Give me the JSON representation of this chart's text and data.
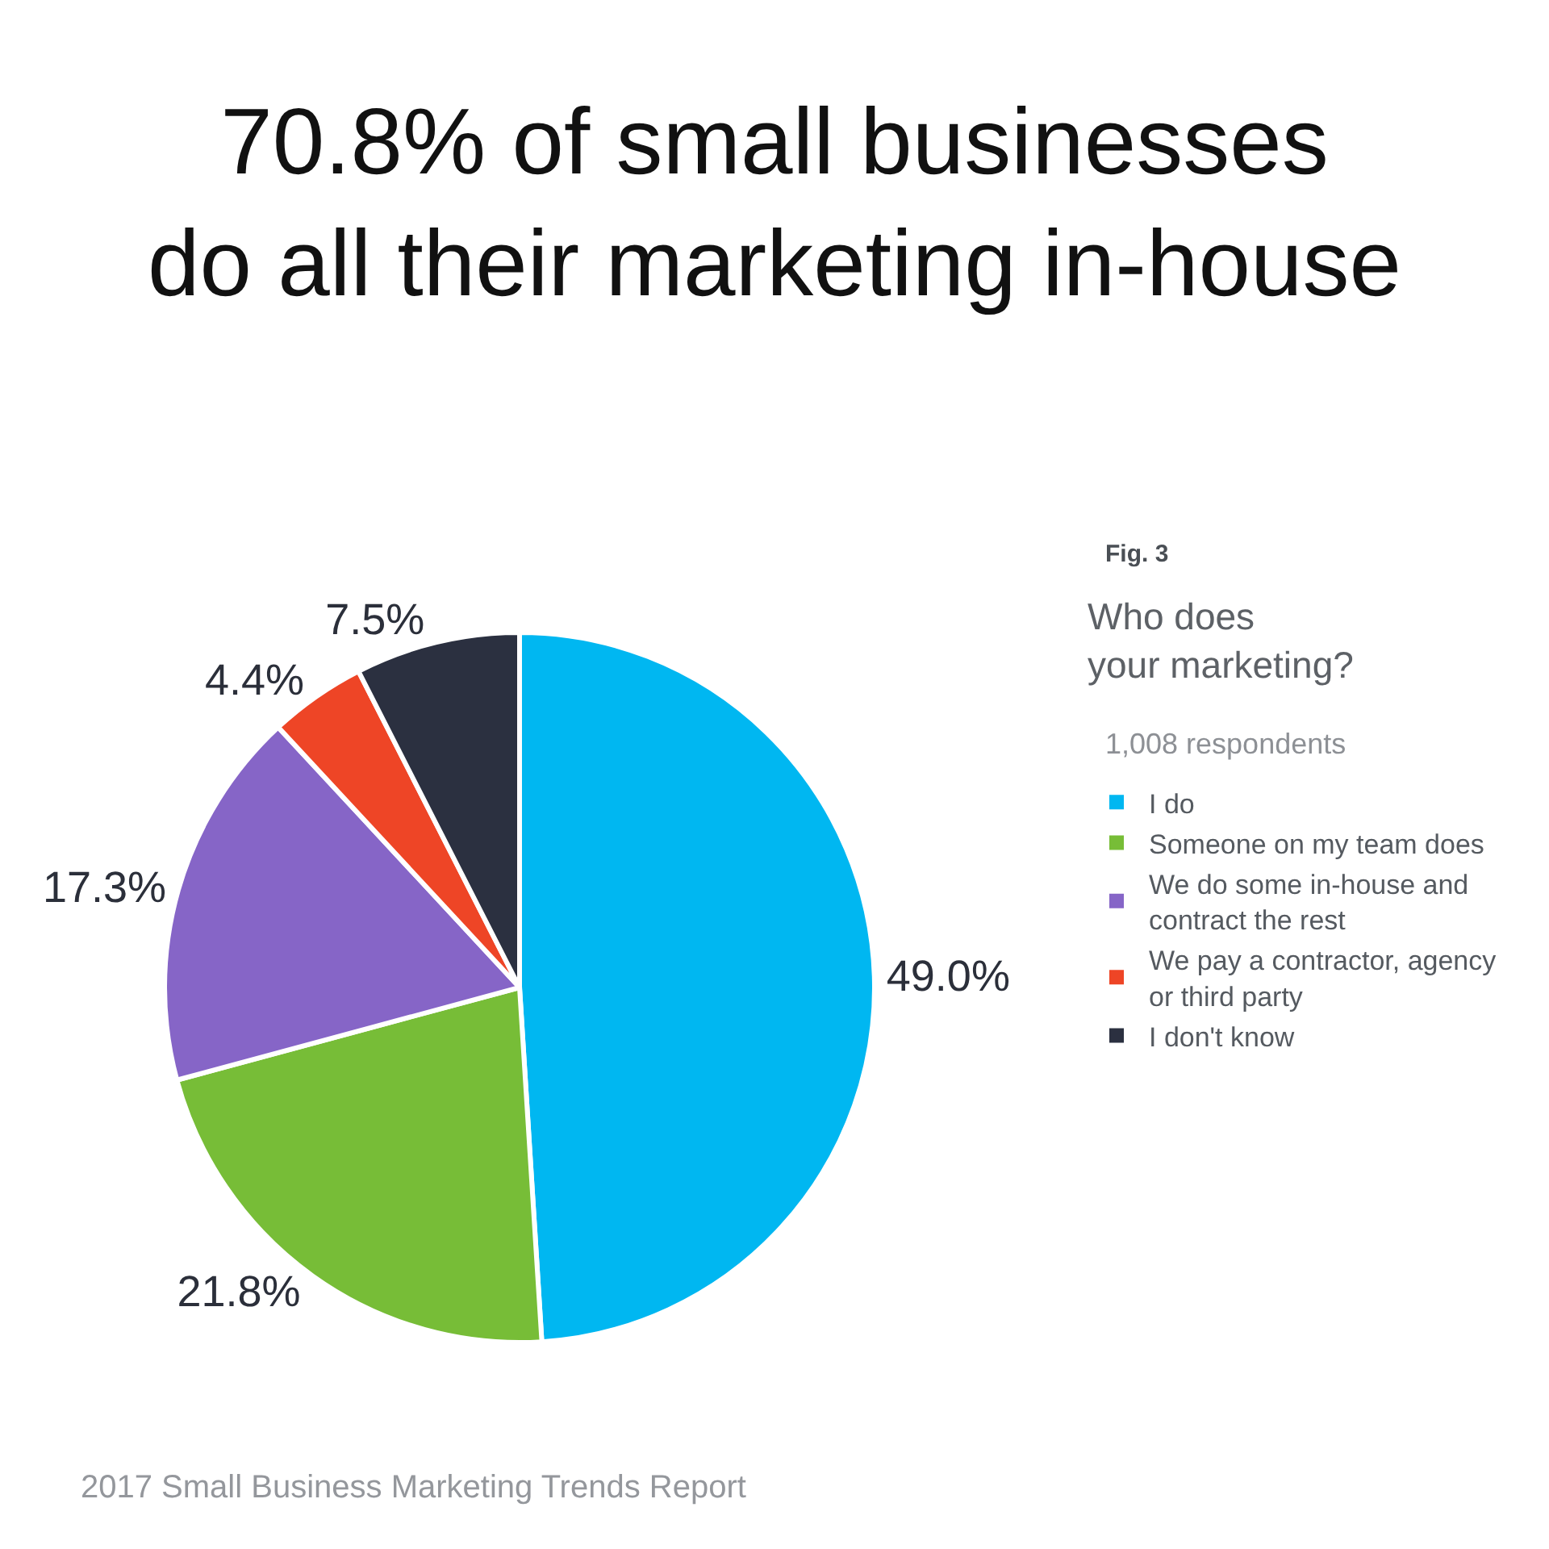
{
  "chart_data": {
    "type": "pie",
    "title": "70.8% of small businesses\ndo all their marketing in-house",
    "legend_title": "Who does\nyour marketing?",
    "annotations": [
      "Fig. 3",
      "1,008 respondents",
      "2017 Small Business Marketing Trends Report"
    ],
    "categories": [
      "I do",
      "Someone on my team does",
      "We do some in-house and contract the rest",
      "We pay a contractor, agency or third party",
      "I don't know"
    ],
    "values": [
      49.0,
      21.8,
      17.3,
      4.4,
      7.5
    ],
    "value_labels": [
      "49.0%",
      "21.8%",
      "17.3%",
      "4.4%",
      "7.5%"
    ],
    "colors": [
      "#00b7f1",
      "#77bd37",
      "#8665c7",
      "#ee4526",
      "#2b3040"
    ],
    "legend": "right"
  }
}
